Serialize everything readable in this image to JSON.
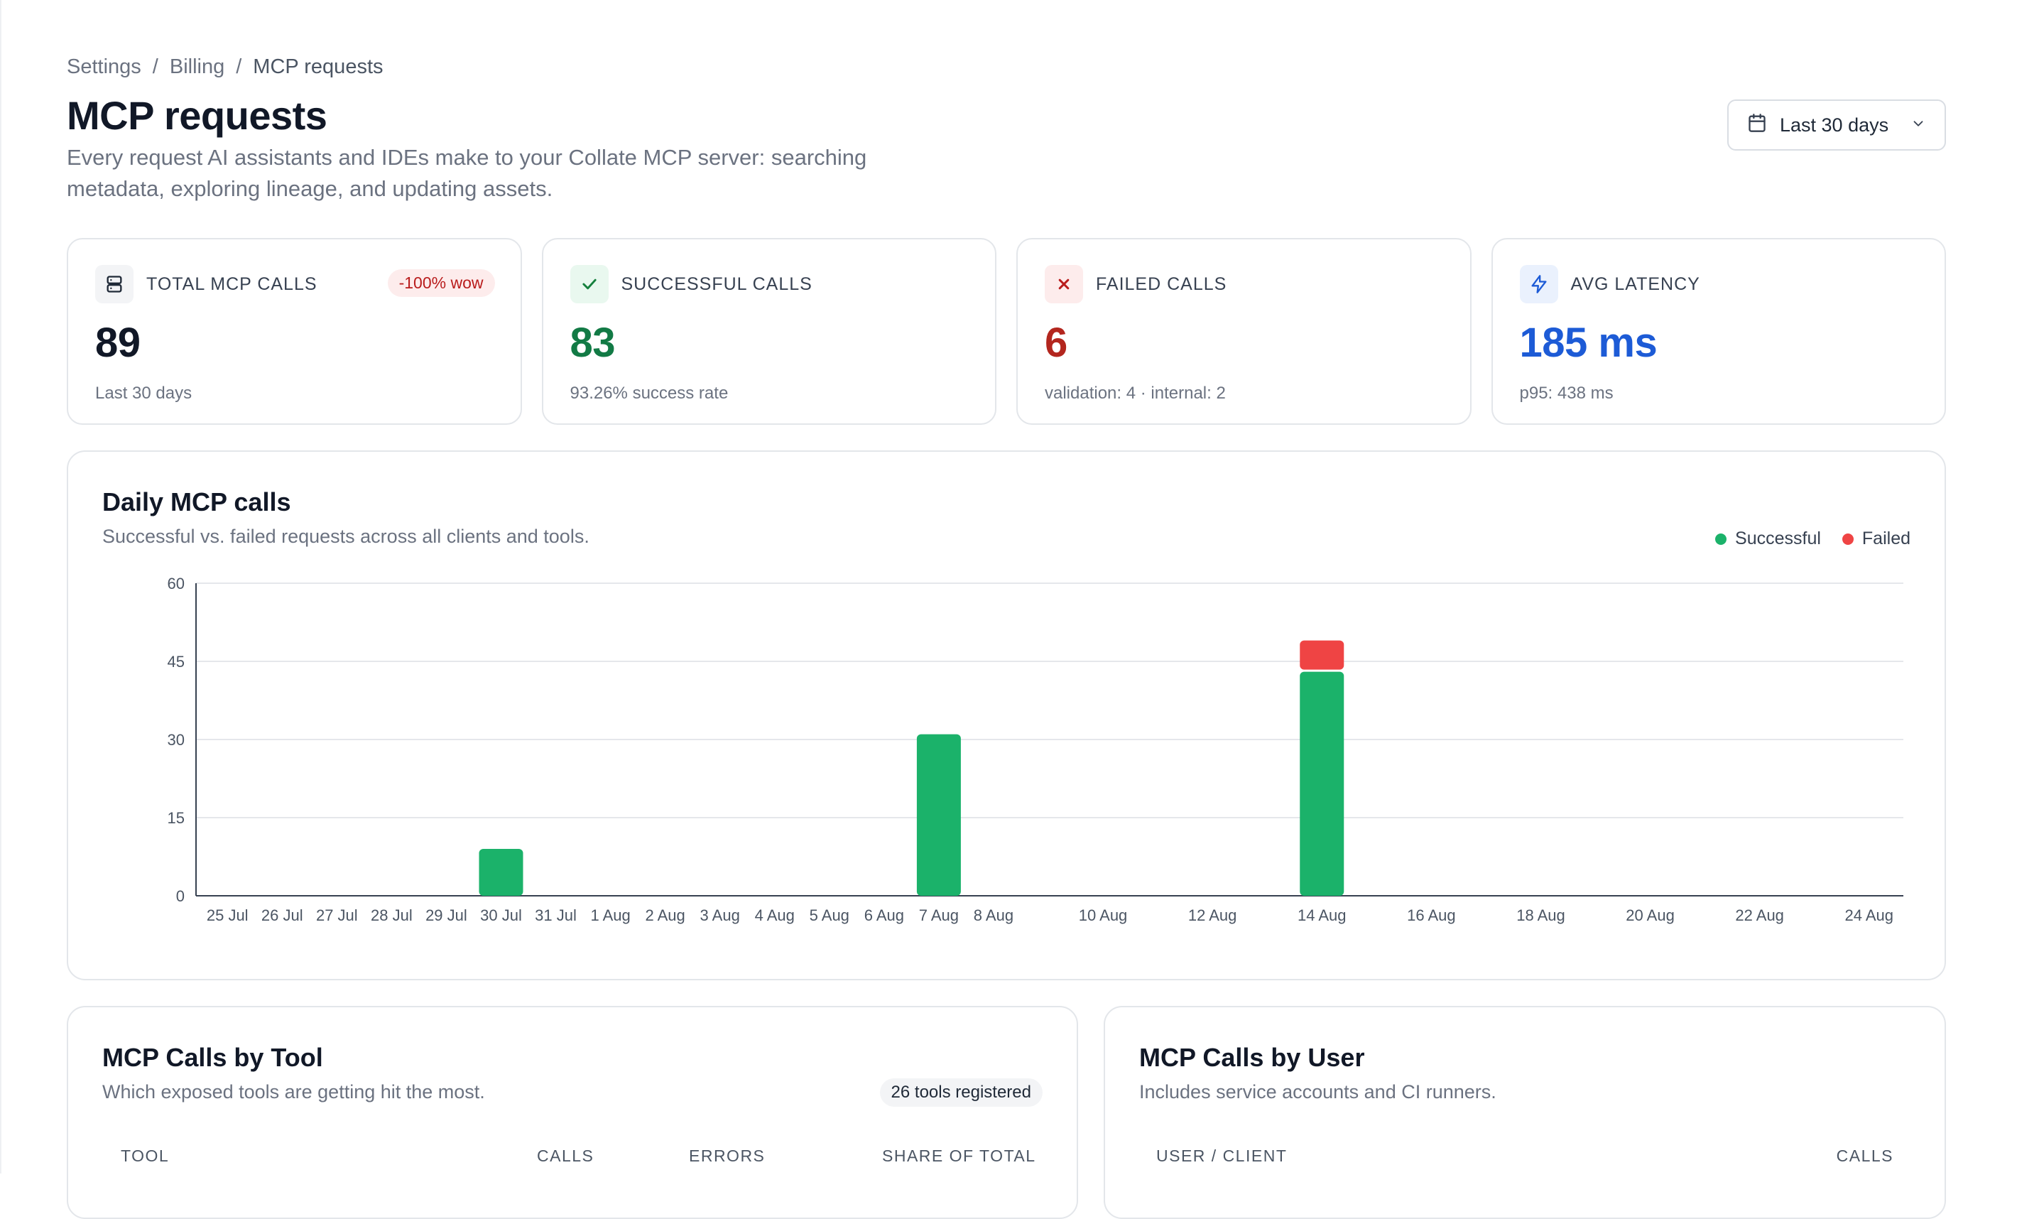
{
  "breadcrumb": {
    "items": [
      "Settings",
      "Billing",
      "MCP requests"
    ],
    "separator": "/"
  },
  "header": {
    "title": "MCP requests",
    "subtitle": "Every request AI assistants and IDEs make to your Collate MCP server: searching metadata, exploring lineage, and updating assets.",
    "range_label": "Last 30 days"
  },
  "kpis": {
    "total": {
      "label": "TOTAL MCP CALLS",
      "value": "89",
      "sub": "Last 30 days",
      "badge": "-100% wow"
    },
    "success": {
      "label": "SUCCESSFUL CALLS",
      "value": "83",
      "sub": "93.26% success rate"
    },
    "failed": {
      "label": "FAILED CALLS",
      "value": "6",
      "sub": "validation: 4 · internal: 2"
    },
    "latency": {
      "label": "AVG LATENCY",
      "value": "185 ms",
      "sub": "p95: 438 ms"
    }
  },
  "colors": {
    "successful": "#1bb26a",
    "failed": "#ef4444",
    "success_text": "#127a45",
    "failed_text": "#b3261e",
    "latency_text": "#1d5bd6"
  },
  "daily_chart": {
    "title": "Daily MCP calls",
    "description": "Successful vs. failed requests across all clients and tools.",
    "legend": {
      "successful": "Successful",
      "failed": "Failed"
    }
  },
  "chart_data": {
    "type": "bar",
    "stacked": true,
    "categories": [
      "25 Jul",
      "26 Jul",
      "27 Jul",
      "28 Jul",
      "29 Jul",
      "30 Jul",
      "31 Jul",
      "1 Aug",
      "2 Aug",
      "3 Aug",
      "4 Aug",
      "5 Aug",
      "6 Aug",
      "7 Aug",
      "8 Aug",
      "9 Aug",
      "10 Aug",
      "11 Aug",
      "12 Aug",
      "13 Aug",
      "14 Aug",
      "15 Aug",
      "16 Aug",
      "17 Aug",
      "18 Aug",
      "19 Aug",
      "20 Aug",
      "21 Aug",
      "22 Aug",
      "23 Aug",
      "24 Aug"
    ],
    "tick_labels": [
      "25 Jul",
      "26 Jul",
      "27 Jul",
      "28 Jul",
      "29 Jul",
      "30 Jul",
      "31 Jul",
      "1 Aug",
      "2 Aug",
      "3 Aug",
      "4 Aug",
      "5 Aug",
      "6 Aug",
      "7 Aug",
      "8 Aug",
      "",
      "10 Aug",
      "",
      "12 Aug",
      "",
      "14 Aug",
      "",
      "16 Aug",
      "",
      "18 Aug",
      "",
      "20 Aug",
      "",
      "22 Aug",
      "",
      "24 Aug"
    ],
    "series": [
      {
        "name": "Successful",
        "values": [
          0,
          0,
          0,
          0,
          0,
          9,
          0,
          0,
          0,
          0,
          0,
          0,
          0,
          31,
          0,
          0,
          0,
          0,
          0,
          0,
          43,
          0,
          0,
          0,
          0,
          0,
          0,
          0,
          0,
          0,
          0
        ]
      },
      {
        "name": "Failed",
        "values": [
          0,
          0,
          0,
          0,
          0,
          0,
          0,
          0,
          0,
          0,
          0,
          0,
          0,
          0,
          0,
          0,
          0,
          0,
          0,
          0,
          6,
          0,
          0,
          0,
          0,
          0,
          0,
          0,
          0,
          0,
          0
        ]
      }
    ],
    "ylim": [
      0,
      60
    ],
    "yticks": [
      0,
      15,
      30,
      45,
      60
    ],
    "grid": true,
    "legend_position": "top-right"
  },
  "tool_table": {
    "title": "MCP Calls by Tool",
    "description": "Which exposed tools are getting hit the most.",
    "pill": "26 tools registered",
    "columns": [
      "TOOL",
      "CALLS",
      "ERRORS",
      "SHARE OF TOTAL"
    ]
  },
  "user_table": {
    "title": "MCP Calls by User",
    "description": "Includes service accounts and CI runners.",
    "columns": [
      "USER / CLIENT",
      "CALLS"
    ]
  }
}
